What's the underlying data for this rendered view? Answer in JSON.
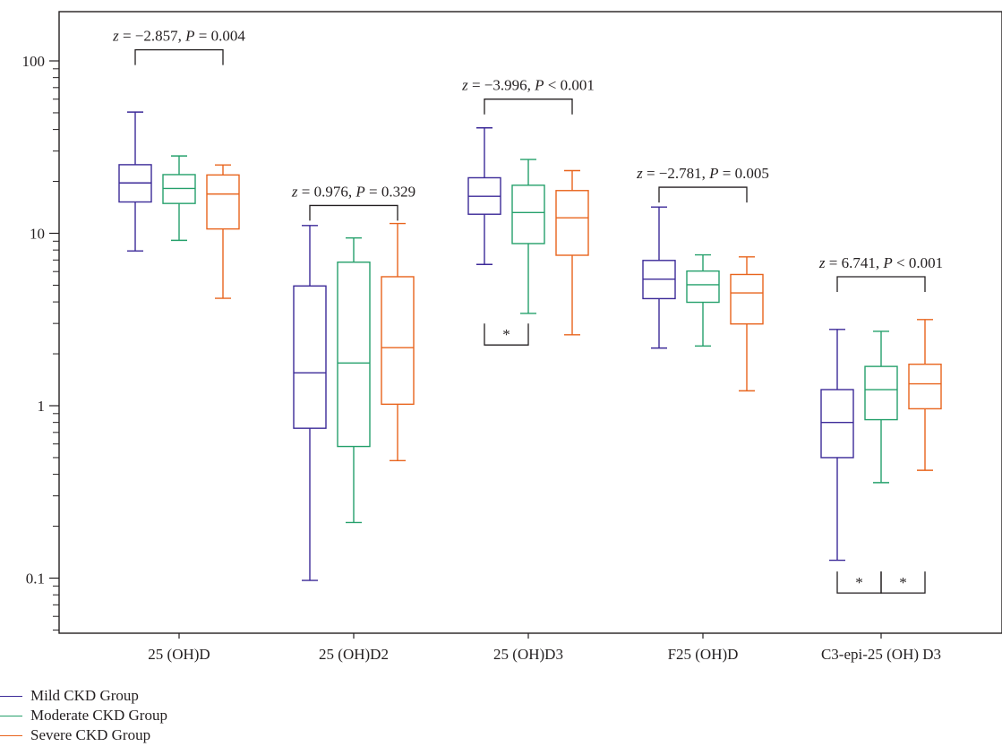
{
  "chart_data": {
    "type": "box",
    "yscale": "log",
    "ylim": [
      0.05,
      200
    ],
    "yticks": [
      {
        "value": 0.1,
        "label": "0.1"
      },
      {
        "value": 1,
        "label": "1"
      },
      {
        "value": 10,
        "label": "10"
      },
      {
        "value": 100,
        "label": "100"
      }
    ],
    "categories": [
      "25 (OH)D",
      "25 (OH)D2",
      "25 (OH)D3",
      "F25 (OH)D",
      "C3-epi-25 (OH) D3"
    ],
    "series": [
      {
        "name": "Mild CKD Group",
        "color": "#3c2a98",
        "boxes": [
          {
            "min": 7.9,
            "q1": 15.2,
            "median": 19.6,
            "q3": 25.0,
            "max": 50.5
          },
          {
            "min": 0.097,
            "q1": 0.74,
            "median": 1.55,
            "q3": 4.95,
            "max": 11.1
          },
          {
            "min": 6.6,
            "q1": 12.9,
            "median": 16.4,
            "q3": 21.0,
            "max": 40.9
          },
          {
            "min": 2.16,
            "q1": 4.18,
            "median": 5.42,
            "q3": 6.96,
            "max": 14.2
          },
          {
            "min": 0.127,
            "q1": 0.5,
            "median": 0.8,
            "q3": 1.24,
            "max": 2.77
          }
        ]
      },
      {
        "name": "Moderate CKD Group",
        "color": "#25a06b",
        "boxes": [
          {
            "min": 9.1,
            "q1": 14.9,
            "median": 18.2,
            "q3": 21.9,
            "max": 28.1
          },
          {
            "min": 0.21,
            "q1": 0.58,
            "median": 1.77,
            "q3": 6.8,
            "max": 9.4
          },
          {
            "min": 3.43,
            "q1": 8.72,
            "median": 13.2,
            "q3": 19.0,
            "max": 26.8
          },
          {
            "min": 2.22,
            "q1": 3.98,
            "median": 5.03,
            "q3": 6.04,
            "max": 7.5
          },
          {
            "min": 0.358,
            "q1": 0.83,
            "median": 1.24,
            "q3": 1.69,
            "max": 2.7
          }
        ]
      },
      {
        "name": "Severe CKD Group",
        "color": "#e8641d",
        "boxes": [
          {
            "min": 4.2,
            "q1": 10.6,
            "median": 16.9,
            "q3": 21.8,
            "max": 24.9
          },
          {
            "min": 0.48,
            "q1": 1.02,
            "median": 2.17,
            "q3": 5.6,
            "max": 11.4
          },
          {
            "min": 2.58,
            "q1": 7.46,
            "median": 12.3,
            "q3": 17.7,
            "max": 23.1
          },
          {
            "min": 1.22,
            "q1": 2.98,
            "median": 4.51,
            "q3": 5.77,
            "max": 7.3
          },
          {
            "min": 0.422,
            "q1": 0.96,
            "median": 1.34,
            "q3": 1.74,
            "max": 3.16
          }
        ]
      }
    ],
    "annotations": [
      {
        "category": 0,
        "from_series": 0,
        "to_series": 2,
        "level": 116,
        "z": "−2.857",
        "p_op": "=",
        "p": "0.004"
      },
      {
        "category": 1,
        "from_series": 0,
        "to_series": 2,
        "level": 14.5,
        "z": "0.976",
        "p_op": "=",
        "p": "0.329"
      },
      {
        "category": 2,
        "from_series": 0,
        "to_series": 2,
        "level": 60,
        "z": "−3.996",
        "p_op": "<",
        "p": "0.001"
      },
      {
        "category": 3,
        "from_series": 0,
        "to_series": 2,
        "level": 18.5,
        "z": "−2.781",
        "p_op": "=",
        "p": "0.005"
      },
      {
        "category": 4,
        "from_series": 0,
        "to_series": 2,
        "level": 5.6,
        "z": "6.741",
        "p_op": "<",
        "p": "0.001"
      }
    ],
    "significance_marks": [
      {
        "category": 2,
        "from_series": 0,
        "to_series": 1,
        "level": 2.25,
        "text": "*"
      },
      {
        "category": 4,
        "from_series": 0,
        "to_series": 1,
        "level": 0.082,
        "text": "*"
      },
      {
        "category": 4,
        "from_series": 1,
        "to_series": 2,
        "level": 0.082,
        "text": "*"
      }
    ],
    "legend_position": "bottom-left"
  }
}
